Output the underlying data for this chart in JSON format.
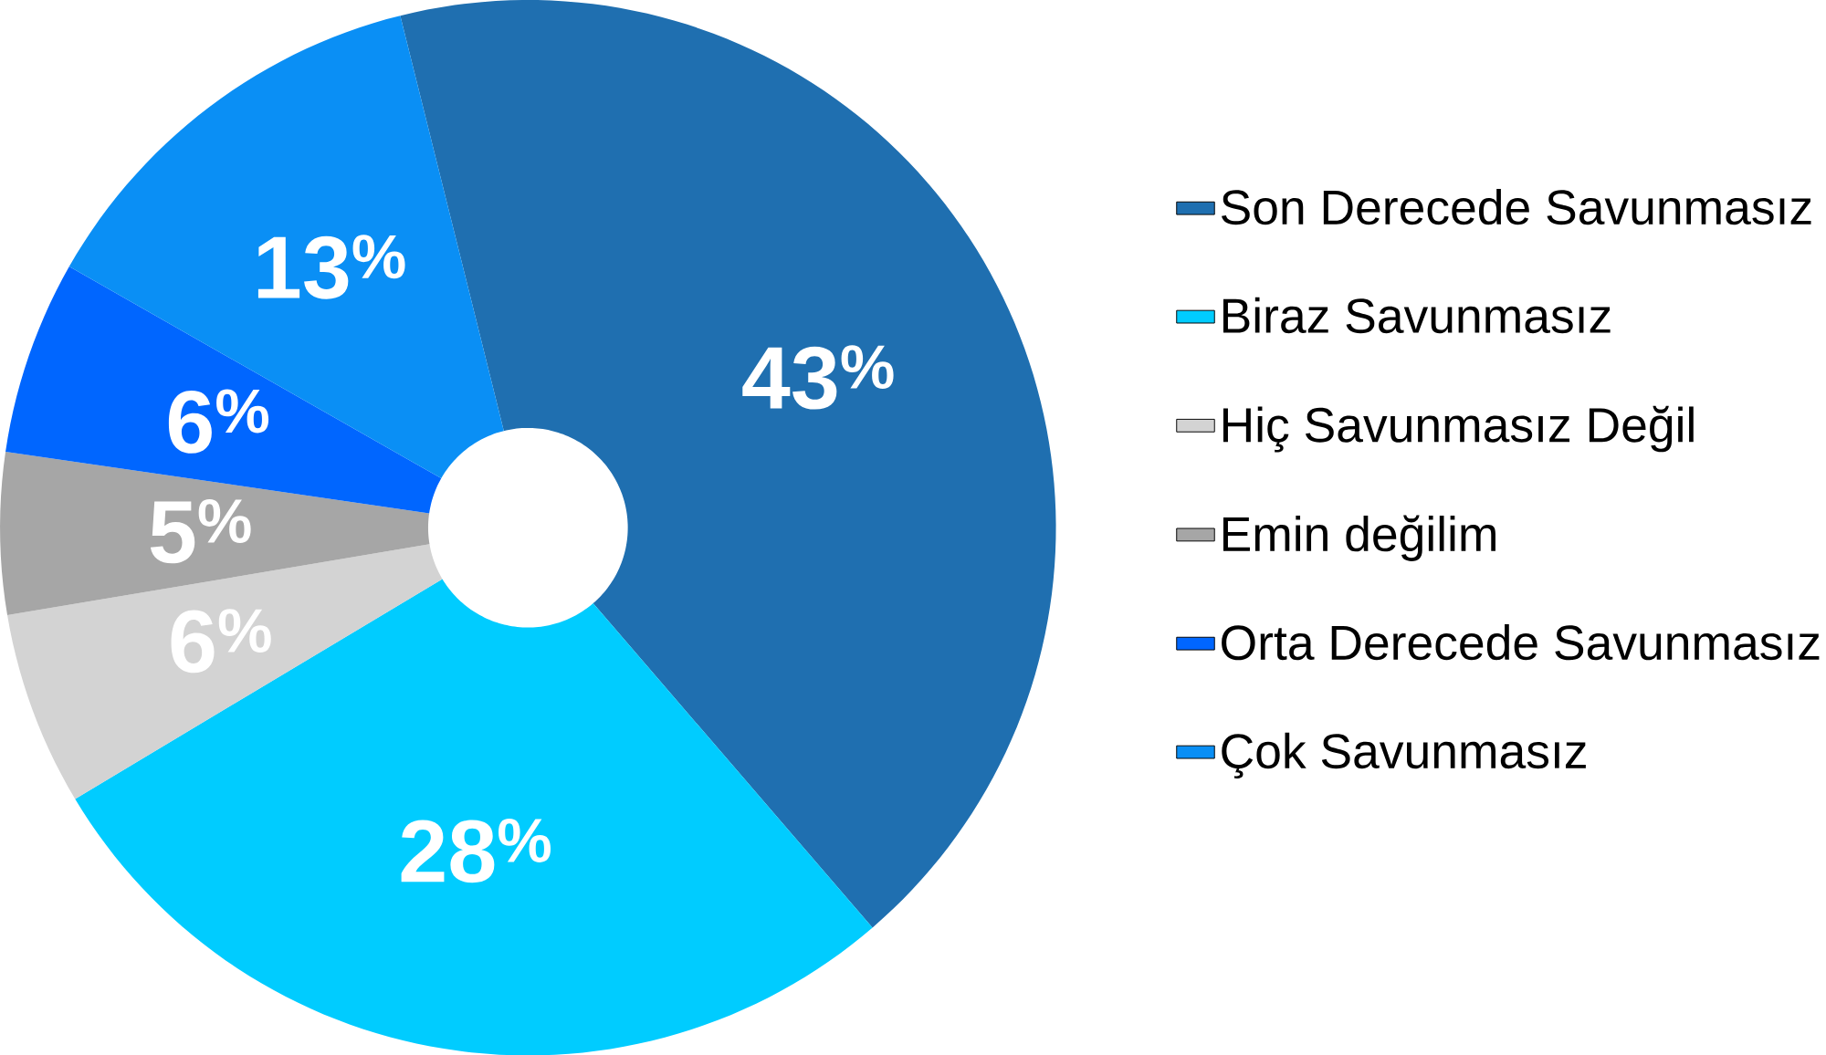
{
  "chart_data": {
    "type": "donut",
    "categories": [
      "Son Derecede Savunmasız",
      "Biraz Savunmasız",
      "Hiç Savunmasız Değil",
      "Emin değilim",
      "Orta Derecede Savunmasız",
      "Çok Savunmasız"
    ],
    "values": [
      43,
      28,
      6,
      5,
      6,
      13
    ],
    "colors": [
      "#1f6fb0",
      "#00ccff",
      "#d3d3d3",
      "#a6a6a6",
      "#0066ff",
      "#0a8ff5"
    ],
    "value_labels": [
      "43$^{%}$",
      "28$^{%}$",
      "6$^{%}$",
      "5$^{%}$",
      "6$^{%}$",
      "13$^{%}$"
    ],
    "legend": "right"
  }
}
